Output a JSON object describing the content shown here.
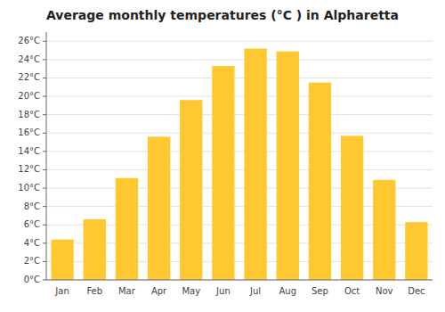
{
  "chart_data": {
    "type": "bar",
    "title": "Average monthly temperatures (°C ) in Alpharetta",
    "categories": [
      "Jan",
      "Feb",
      "Mar",
      "Apr",
      "May",
      "Jun",
      "Jul",
      "Aug",
      "Sep",
      "Oct",
      "Nov",
      "Dec"
    ],
    "values": [
      4.4,
      6.6,
      11.1,
      15.6,
      19.6,
      23.3,
      25.2,
      24.9,
      21.5,
      15.7,
      10.9,
      6.3
    ],
    "color": "#FFC830",
    "ylim": [
      0,
      27
    ],
    "yticks": [
      {
        "value": 0,
        "label": "0°C"
      },
      {
        "value": 2,
        "label": "2°C"
      },
      {
        "value": 4,
        "label": "4°C"
      },
      {
        "value": 6,
        "label": "6°C"
      },
      {
        "value": 8,
        "label": "8°C"
      },
      {
        "value": 10,
        "label": "10°C"
      },
      {
        "value": 12,
        "label": "12°C"
      },
      {
        "value": 14,
        "label": "14°C"
      },
      {
        "value": 16,
        "label": "16°C"
      },
      {
        "value": 18,
        "label": "18°C"
      },
      {
        "value": 20,
        "label": "20°C"
      },
      {
        "value": 22,
        "label": "22°C"
      },
      {
        "value": 24,
        "label": "24°C"
      },
      {
        "value": 26,
        "label": "26°C"
      }
    ],
    "grid": true
  }
}
